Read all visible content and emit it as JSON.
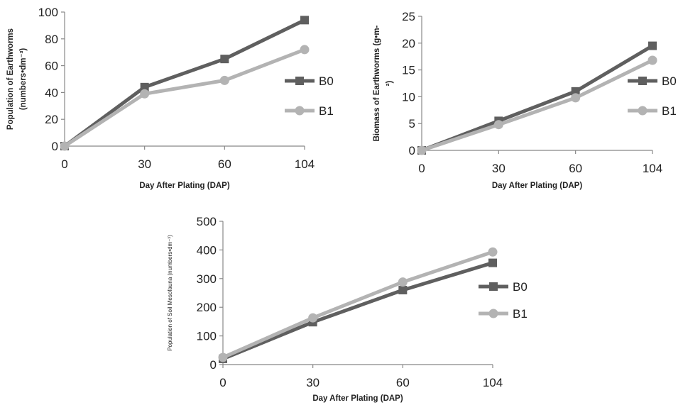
{
  "chart_data": [
    {
      "type": "line",
      "x": [
        "0",
        "30",
        "60",
        "104"
      ],
      "ylim": [
        0,
        100
      ],
      "yticks": [
        "0",
        "20",
        "40",
        "60",
        "80",
        "100"
      ],
      "xlabel": "Day After Plating (DAP)",
      "ylabel_lines": [
        "Population of Earthworms",
        "(numbers•dm⁻³)"
      ],
      "grid": false,
      "legend": "right",
      "series": [
        {
          "name": "B0",
          "values": [
            0,
            44,
            65,
            94
          ],
          "color": "#5f5f5f",
          "marker": "square"
        },
        {
          "name": "B1",
          "values": [
            0,
            39,
            49,
            72
          ],
          "color": "#b3b3b3",
          "marker": "circle"
        }
      ]
    },
    {
      "type": "line",
      "x": [
        "0",
        "30",
        "60",
        "104"
      ],
      "ylim": [
        0,
        25
      ],
      "yticks": [
        "0",
        "5",
        "10",
        "15",
        "20",
        "25"
      ],
      "xlabel": "Day After Plating (DAP)",
      "ylabel_lines": [
        "Biomass of Earthworms  (g•m-",
        "²)"
      ],
      "grid": false,
      "legend": "right",
      "series": [
        {
          "name": "B0",
          "values": [
            0,
            5.5,
            11,
            19.5
          ],
          "color": "#5f5f5f",
          "marker": "square"
        },
        {
          "name": "B1",
          "values": [
            0,
            4.8,
            9.8,
            16.8
          ],
          "color": "#b3b3b3",
          "marker": "circle"
        }
      ]
    },
    {
      "type": "line",
      "x": [
        "0",
        "30",
        "60",
        "104"
      ],
      "ylim": [
        0,
        500
      ],
      "yticks": [
        "0",
        "100",
        "200",
        "300",
        "400",
        "500"
      ],
      "xlabel": "Day After Plating (DAP)",
      "ylabel_lines": [
        "Population of Soil Mesofauna (numbers•dm⁻³)"
      ],
      "grid": false,
      "legend": "right",
      "series": [
        {
          "name": "B0",
          "values": [
            20,
            148,
            260,
            355
          ],
          "color": "#5f5f5f",
          "marker": "square"
        },
        {
          "name": "B1",
          "values": [
            25,
            163,
            288,
            393
          ],
          "color": "#b3b3b3",
          "marker": "circle"
        }
      ]
    }
  ]
}
